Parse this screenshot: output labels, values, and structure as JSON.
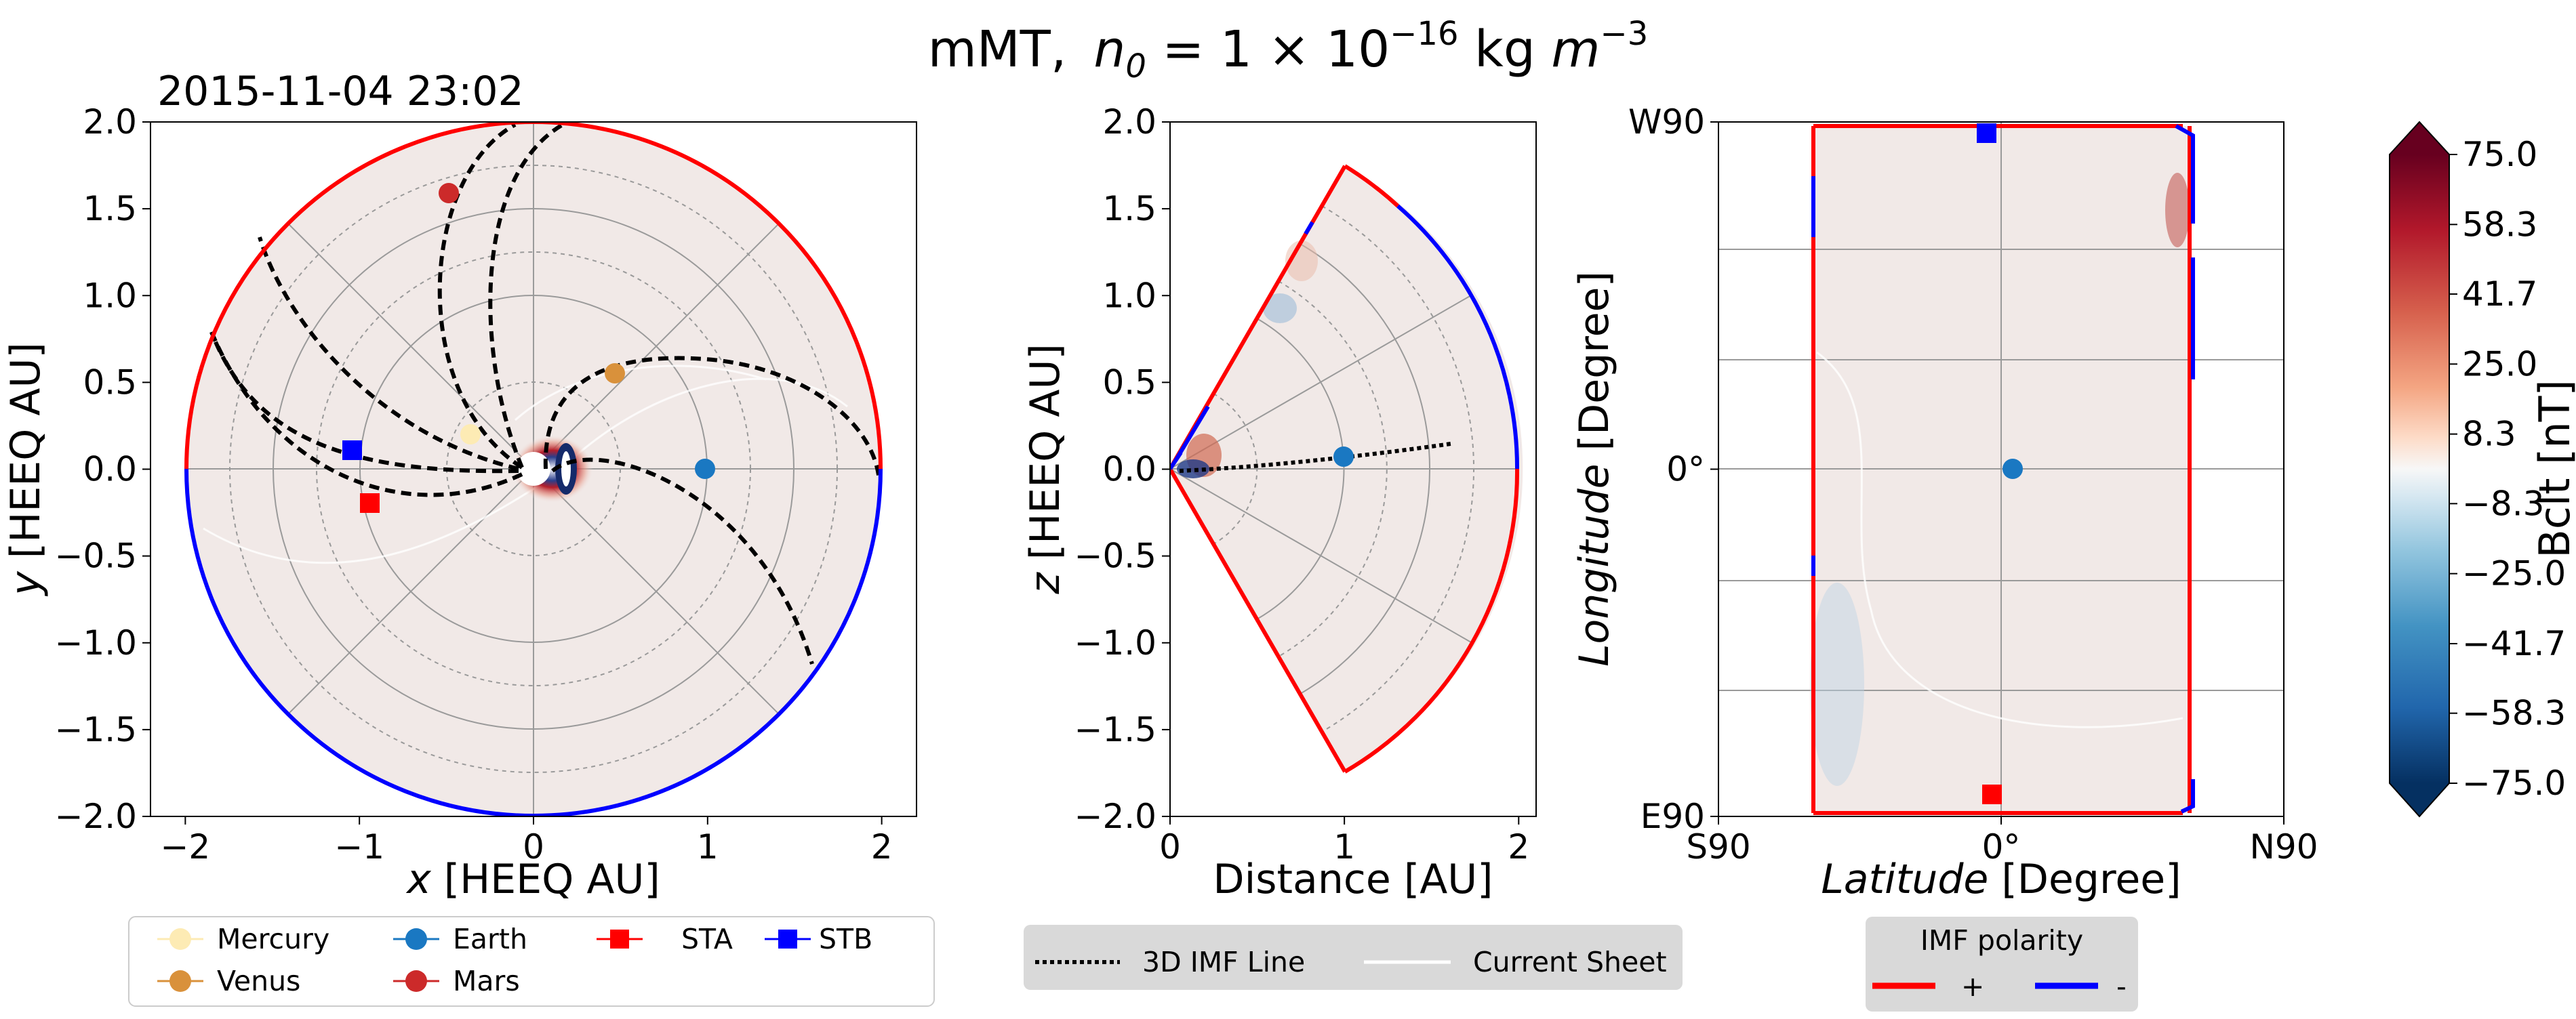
{
  "title": {
    "prefix": "mMT,",
    "n": "n",
    "sub0": "0",
    "eq": " = 1 × 10",
    "exp": "−16",
    "units": " kg ",
    "m": "m",
    "mexp": "−3"
  },
  "colors": {
    "positive": "#ff0000",
    "negative": "#0000ff",
    "background": "#f1e9e7",
    "mercury": "#fdebb4",
    "venus": "#d9913b",
    "earth": "#1a78c2",
    "mars": "#cc2a2a",
    "sta": "#ff0000",
    "stb": "#0000ff"
  },
  "chart_data": [
    {
      "type": "polar-map",
      "name": "ecliptic",
      "title": "2015-11-04 23:02",
      "xlabel_var": "x",
      "xlabel_unit": " [HEEQ AU]",
      "ylabel_var": "y",
      "ylabel_unit": " [HEEQ AU]",
      "xlim": [
        -2.2,
        2.2
      ],
      "ylim": [
        -2.0,
        2.0
      ],
      "xticks": [
        "−2",
        "−1",
        "0",
        "1",
        "2"
      ],
      "xtick_values": [
        -2,
        -1,
        0,
        1,
        2
      ],
      "yticks": [
        "2.0",
        "1.5",
        "1.0",
        "0.5",
        "0.0",
        "−0.5",
        "−1.0",
        "−1.5",
        "−2.0"
      ],
      "ytick_values": [
        2.0,
        1.5,
        1.0,
        0.5,
        0.0,
        -0.5,
        -1.0,
        -1.5,
        -2.0
      ],
      "boundary_radius_au": 2.0,
      "polarity_positive_arc_deg": [
        0,
        180
      ],
      "bodies": [
        {
          "name": "Mercury",
          "x": -0.36,
          "y": 0.2
        },
        {
          "name": "Venus",
          "x": 0.47,
          "y": 0.55
        },
        {
          "name": "Earth",
          "x": 0.99,
          "y": 0.0
        },
        {
          "name": "Mars",
          "x": -0.49,
          "y": 1.59
        },
        {
          "name": "STA",
          "x": -0.94,
          "y": -0.19
        },
        {
          "name": "STB",
          "x": -1.04,
          "y": 0.11
        }
      ]
    },
    {
      "type": "polar-map",
      "name": "meridional",
      "xlabel": "Distance [AU]",
      "ylabel_var": "z",
      "ylabel_unit": " [HEEQ AU]",
      "xlim": [
        0,
        2.1
      ],
      "ylim": [
        -2.0,
        2.0
      ],
      "xticks": [
        "0",
        "1",
        "2"
      ],
      "xtick_values": [
        0,
        1,
        2
      ],
      "yticks": [
        "2.0",
        "1.5",
        "1.0",
        "0.5",
        "0.0",
        "−0.5",
        "−1.0",
        "−1.5",
        "−2.0"
      ],
      "ytick_values": [
        2.0,
        1.5,
        1.0,
        0.5,
        0.0,
        -0.5,
        -1.0,
        -1.5,
        -2.0
      ],
      "wedge_half_angle_deg": 60,
      "boundary_radius_au": 2.0,
      "bodies": [
        {
          "name": "Earth",
          "x": 1.0,
          "z": 0.07
        }
      ]
    },
    {
      "type": "lat-lon-map",
      "name": "boundary",
      "xlabel_var": "Latitude",
      "xlabel_unit": " [Degree]",
      "ylabel_var": "Longitude",
      "ylabel_unit": " [Degree]",
      "xticks": [
        "S90",
        "0°",
        "N90"
      ],
      "xtick_values": [
        -90,
        0,
        90
      ],
      "yticks": [
        "W90",
        "0°",
        "E90"
      ],
      "ytick_values": [
        90,
        0,
        -90
      ],
      "latitude_range_deg": [
        -60,
        60
      ],
      "bodies": [
        {
          "name": "Earth",
          "lat": 3,
          "lon": 0
        },
        {
          "name": "STA",
          "lat": -3,
          "lon": -86
        },
        {
          "name": "STB",
          "lat": -3,
          "lon": 86
        }
      ]
    },
    {
      "type": "colorbar",
      "label": "Bclt  [nT]",
      "range": [
        -75.0,
        75.0
      ],
      "ticks": [
        "75.0",
        "58.3",
        "41.7",
        "25.0",
        "8.3",
        "−8.3",
        "−25.0",
        "−41.7",
        "−58.3",
        "−75.0"
      ],
      "tick_values": [
        75.0,
        58.3,
        41.7,
        25.0,
        8.3,
        -8.3,
        -25.0,
        -41.7,
        -58.3,
        -75.0
      ],
      "colormap": "RdBu_r"
    }
  ],
  "legends": {
    "bodies": [
      "Mercury",
      "Venus",
      "Earth",
      "Mars",
      "STA",
      "STB"
    ],
    "lines": {
      "imf_line": "3D IMF Line",
      "current_sheet": "Current Sheet"
    },
    "polarity": {
      "title": "IMF polarity",
      "positive": "+",
      "negative": "-"
    }
  }
}
